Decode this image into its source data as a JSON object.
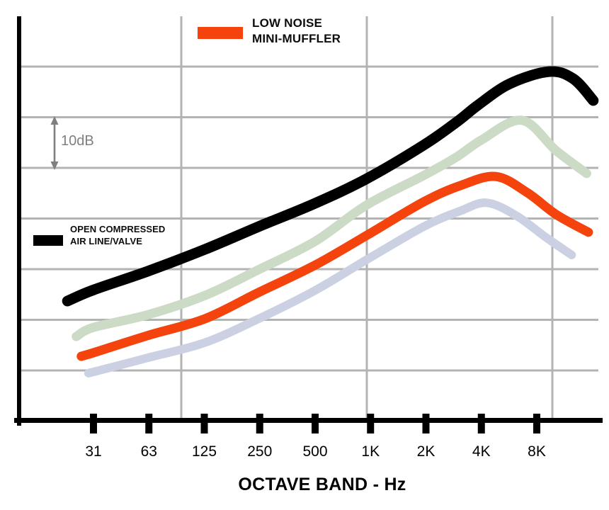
{
  "chart_data": {
    "type": "line",
    "title": "",
    "xlabel": "OCTAVE BAND - Hz",
    "ylabel": "",
    "y_scale_note": "relative sound level, 10 dB per horizontal gridline division",
    "scale_marker_label": "10dB",
    "x_categories": [
      "31",
      "63",
      "125",
      "250",
      "500",
      "1K",
      "2K",
      "4K",
      "8K"
    ],
    "grid": {
      "horizontal_divisions": 7,
      "vertical_lines": 3,
      "db_per_division": 10
    },
    "series": [
      {
        "name": "unlabeled pale blue curve",
        "color": "#CBD1E2",
        "stroke_width": 12,
        "points_band_vs_reldb": [
          [
            -0.05,
            -0.4
          ],
          [
            0,
            -0.3
          ],
          [
            0.98,
            2.5
          ],
          [
            2.01,
            5.5
          ],
          [
            2.98,
            10.2
          ],
          [
            4.0,
            15.8
          ],
          [
            4.92,
            21.8
          ],
          [
            5.96,
            28.4
          ],
          [
            6.62,
            31.5
          ],
          [
            7.1,
            33.1
          ],
          [
            7.64,
            30.5
          ],
          [
            8.15,
            26.4
          ],
          [
            8.63,
            22.8
          ]
        ]
      },
      {
        "name": "unlabeled pale green curve",
        "color": "#CBDBC6",
        "stroke_width": 13,
        "points_band_vs_reldb": [
          [
            -0.31,
            6.7
          ],
          [
            0,
            8.5
          ],
          [
            0.98,
            11.0
          ],
          [
            2.01,
            14.8
          ],
          [
            2.98,
            19.9
          ],
          [
            4.0,
            25.5
          ],
          [
            4.92,
            32.6
          ],
          [
            5.96,
            38.5
          ],
          [
            6.56,
            42.2
          ],
          [
            7.0,
            45.5
          ],
          [
            7.73,
            49.4
          ],
          [
            8.35,
            43.4
          ],
          [
            8.9,
            38.9
          ]
        ]
      },
      {
        "name": "LOW NOISE MINI-MUFFLER",
        "color": "#F4430D",
        "stroke_width": 13,
        "points_band_vs_reldb": [
          [
            -0.22,
            2.8
          ],
          [
            0,
            3.5
          ],
          [
            0.98,
            6.9
          ],
          [
            2.01,
            10.2
          ],
          [
            2.98,
            15.4
          ],
          [
            4.0,
            20.8
          ],
          [
            4.92,
            26.6
          ],
          [
            5.96,
            33.3
          ],
          [
            6.62,
            36.5
          ],
          [
            7.26,
            38.3
          ],
          [
            7.83,
            35.1
          ],
          [
            8.35,
            30.8
          ],
          [
            8.93,
            27.3
          ]
        ]
      },
      {
        "name": "OPEN COMPRESSED AIR LINE/VALVE",
        "color": "#000000",
        "stroke_width": 15,
        "points_band_vs_reldb": [
          [
            -0.47,
            13.7
          ],
          [
            0,
            15.9
          ],
          [
            0.98,
            19.6
          ],
          [
            2.01,
            23.9
          ],
          [
            2.98,
            28.4
          ],
          [
            4.0,
            33.0
          ],
          [
            4.92,
            37.8
          ],
          [
            5.96,
            44.5
          ],
          [
            6.56,
            49.1
          ],
          [
            6.94,
            52.4
          ],
          [
            7.51,
            56.6
          ],
          [
            8.22,
            59.0
          ],
          [
            8.66,
            57.6
          ],
          [
            9.02,
            53.3
          ]
        ]
      }
    ],
    "legend_position": "mini-muffler top-center, open-air-line mid-left inside plot"
  },
  "legend": {
    "mini_muffler": {
      "line1": "LOW NOISE",
      "line2": "MINI-MUFFLER",
      "swatch_color": "#F4430D"
    },
    "open_air": {
      "line1": "OPEN COMPRESSED",
      "line2": "AIR LINE/VALVE",
      "swatch_color": "#000000"
    }
  },
  "scale_annotation": {
    "label": "10dB"
  },
  "axis": {
    "x_title": "OCTAVE BAND - Hz"
  },
  "colors": {
    "grid": "#B3B3B3",
    "axis": "#000000",
    "annotation_gray": "#7F7F7F",
    "orange": "#F4430D",
    "pale_green": "#CBDBC6",
    "pale_blue": "#CBD1E2"
  }
}
